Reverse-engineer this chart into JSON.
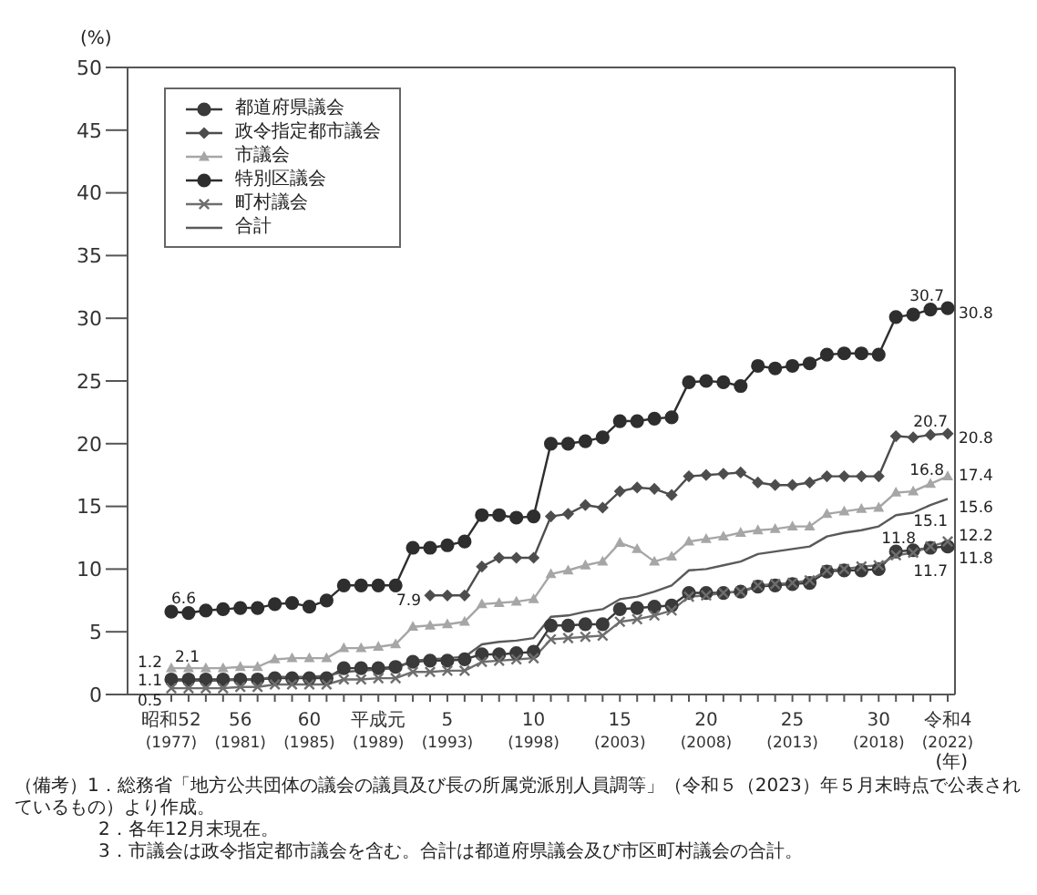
{
  "chart_data": {
    "type": "line",
    "ylabel": "(%)",
    "xlabel": "(年)",
    "categories": [
      "昭和52\n(1977)",
      null,
      null,
      null,
      "56\n(1981)",
      null,
      null,
      null,
      "60\n(1985)",
      null,
      null,
      null,
      "平成元\n(1989)",
      null,
      null,
      null,
      "5\n(1993)",
      null,
      null,
      null,
      null,
      "10\n(1998)",
      null,
      null,
      null,
      null,
      "15\n(2003)",
      null,
      null,
      null,
      null,
      "20\n(2008)",
      null,
      null,
      null,
      null,
      "25\n(2013)",
      null,
      null,
      null,
      null,
      "30\n(2018)",
      null,
      null,
      null,
      "令和4\n(2022)"
    ],
    "ylim": [
      0,
      50
    ],
    "yticks": [
      0,
      5,
      10,
      15,
      20,
      25,
      30,
      35,
      40,
      45,
      50
    ],
    "legend": "top left",
    "series": [
      {
        "name": "都道府県議会",
        "color": "#3a3a3a",
        "marker": "circle",
        "values": [
          1.2,
          1.2,
          1.2,
          1.2,
          1.2,
          1.2,
          1.3,
          1.3,
          1.3,
          1.3,
          2.1,
          2.1,
          2.1,
          2.2,
          2.6,
          2.7,
          2.7,
          2.8,
          3.2,
          3.2,
          3.3,
          3.4,
          5.5,
          5.5,
          5.6,
          5.6,
          6.8,
          6.9,
          7.0,
          7.1,
          8.1,
          8.1,
          8.1,
          8.2,
          8.6,
          8.7,
          8.8,
          8.9,
          9.8,
          9.9,
          9.9,
          10.0,
          11.4,
          11.5,
          11.7,
          11.8
        ],
        "value_labels": [
          "1.2",
          null,
          null,
          null,
          null,
          null,
          null,
          null,
          null,
          null,
          null,
          null,
          null,
          null,
          null,
          null,
          null,
          null,
          null,
          null,
          null,
          null,
          null,
          null,
          null,
          null,
          null,
          null,
          null,
          null,
          null,
          null,
          null,
          null,
          null,
          null,
          null,
          null,
          null,
          null,
          null,
          null,
          null,
          null,
          "11.7",
          "11.8"
        ]
      },
      {
        "name": "政令指定都市議会",
        "color": "#4d4d4d",
        "marker": "diamond",
        "values": [
          null,
          null,
          null,
          null,
          null,
          null,
          null,
          null,
          null,
          null,
          null,
          null,
          null,
          null,
          null,
          7.9,
          7.9,
          7.9,
          10.2,
          10.9,
          10.9,
          10.9,
          14.2,
          14.4,
          15.1,
          14.9,
          16.2,
          16.5,
          16.4,
          15.9,
          17.4,
          17.5,
          17.6,
          17.7,
          16.9,
          16.7,
          16.7,
          16.9,
          17.4,
          17.4,
          17.4,
          17.4,
          20.6,
          20.5,
          20.7,
          20.8
        ],
        "value_labels": [
          null,
          null,
          null,
          null,
          null,
          null,
          null,
          null,
          null,
          null,
          null,
          null,
          null,
          null,
          null,
          "7.9",
          null,
          null,
          null,
          null,
          null,
          null,
          null,
          null,
          null,
          null,
          null,
          null,
          null,
          null,
          null,
          null,
          null,
          null,
          null,
          null,
          null,
          null,
          null,
          null,
          null,
          null,
          null,
          null,
          "20.7",
          "20.8"
        ]
      },
      {
        "name": "市議会",
        "color": "#a6a6a6",
        "marker": "triangle",
        "values": [
          2.1,
          2.1,
          2.1,
          2.1,
          2.2,
          2.2,
          2.8,
          2.9,
          2.9,
          2.9,
          3.7,
          3.7,
          3.8,
          4.0,
          5.4,
          5.5,
          5.6,
          5.8,
          7.2,
          7.3,
          7.4,
          7.6,
          9.6,
          9.9,
          10.3,
          10.6,
          12.1,
          11.6,
          10.6,
          11.0,
          12.2,
          12.4,
          12.6,
          12.9,
          13.1,
          13.2,
          13.4,
          13.4,
          14.4,
          14.6,
          14.8,
          14.9,
          16.1,
          16.2,
          16.8,
          17.4
        ],
        "value_labels": [
          "2.1",
          null,
          null,
          null,
          null,
          null,
          null,
          null,
          null,
          null,
          null,
          null,
          null,
          null,
          null,
          null,
          null,
          null,
          null,
          null,
          null,
          null,
          null,
          null,
          null,
          null,
          null,
          null,
          null,
          null,
          null,
          null,
          null,
          null,
          null,
          null,
          null,
          null,
          null,
          null,
          null,
          null,
          null,
          null,
          "16.8",
          "17.4"
        ]
      },
      {
        "name": "特別区議会",
        "color": "#2e2e2e",
        "marker": "circle",
        "values": [
          6.6,
          6.5,
          6.7,
          6.8,
          6.9,
          6.9,
          7.2,
          7.3,
          7.0,
          7.5,
          8.7,
          8.7,
          8.7,
          8.7,
          11.7,
          11.7,
          11.9,
          12.2,
          14.3,
          14.3,
          14.1,
          14.2,
          20.0,
          20.0,
          20.2,
          20.5,
          21.8,
          21.8,
          22.0,
          22.1,
          24.9,
          25.0,
          24.9,
          24.6,
          26.2,
          26.0,
          26.2,
          26.4,
          27.1,
          27.2,
          27.2,
          27.1,
          30.1,
          30.3,
          30.7,
          30.8
        ],
        "value_labels": [
          "6.6",
          null,
          null,
          null,
          null,
          null,
          null,
          null,
          null,
          null,
          null,
          null,
          null,
          null,
          null,
          null,
          null,
          null,
          null,
          null,
          null,
          null,
          null,
          null,
          null,
          null,
          null,
          null,
          null,
          null,
          null,
          null,
          null,
          null,
          null,
          null,
          null,
          null,
          null,
          null,
          null,
          null,
          null,
          null,
          "30.7",
          "30.8"
        ]
      },
      {
        "name": "町村議会",
        "color": "#6e6e6e",
        "marker": "cross",
        "values": [
          0.5,
          0.5,
          0.5,
          0.5,
          0.6,
          0.6,
          0.8,
          0.8,
          0.8,
          0.8,
          1.2,
          1.2,
          1.3,
          1.3,
          1.8,
          1.8,
          1.9,
          1.9,
          2.6,
          2.7,
          2.8,
          2.9,
          4.4,
          4.5,
          4.6,
          4.7,
          5.8,
          6.0,
          6.3,
          6.7,
          7.8,
          7.9,
          8.1,
          8.2,
          8.7,
          8.8,
          8.9,
          9.1,
          9.9,
          10.0,
          10.2,
          10.3,
          11.1,
          11.3,
          11.8,
          12.2
        ],
        "value_labels": [
          "0.5",
          null,
          null,
          null,
          null,
          null,
          null,
          null,
          null,
          null,
          null,
          null,
          null,
          null,
          null,
          null,
          null,
          null,
          null,
          null,
          null,
          null,
          null,
          null,
          null,
          null,
          null,
          null,
          null,
          null,
          null,
          null,
          null,
          null,
          null,
          null,
          null,
          null,
          null,
          null,
          null,
          null,
          null,
          null,
          "11.8",
          "12.2"
        ]
      },
      {
        "name": "合計",
        "color": "#5a5a5a",
        "marker": "none",
        "values": [
          1.1,
          1.1,
          1.1,
          1.1,
          1.2,
          1.2,
          1.4,
          1.4,
          1.4,
          1.5,
          1.8,
          1.9,
          2.0,
          2.1,
          2.7,
          2.8,
          2.9,
          3.0,
          4.0,
          4.2,
          4.3,
          4.5,
          6.2,
          6.3,
          6.6,
          6.8,
          7.6,
          7.8,
          8.2,
          8.7,
          9.9,
          10.0,
          10.3,
          10.6,
          11.2,
          11.4,
          11.6,
          11.8,
          12.6,
          12.9,
          13.1,
          13.4,
          14.3,
          14.5,
          15.1,
          15.6
        ],
        "value_labels": [
          "1.1",
          null,
          null,
          null,
          null,
          null,
          null,
          null,
          null,
          null,
          null,
          null,
          null,
          null,
          null,
          null,
          null,
          null,
          null,
          null,
          null,
          null,
          null,
          null,
          null,
          null,
          null,
          null,
          null,
          null,
          null,
          null,
          null,
          null,
          null,
          null,
          null,
          null,
          null,
          null,
          null,
          null,
          null,
          null,
          "15.1",
          "15.6"
        ]
      }
    ],
    "annotations": [
      "（備考）1．総務省「地方公共団体の議会の議員及び長の所属党派別人員調等」（令和５（2023）年５月末時点で公表されているもの）より作成。",
      "2．各年12月末現在。",
      "3．市議会は政令指定都市議会を含む。合計は都道府県議会及び市区町村議会の合計。"
    ]
  }
}
